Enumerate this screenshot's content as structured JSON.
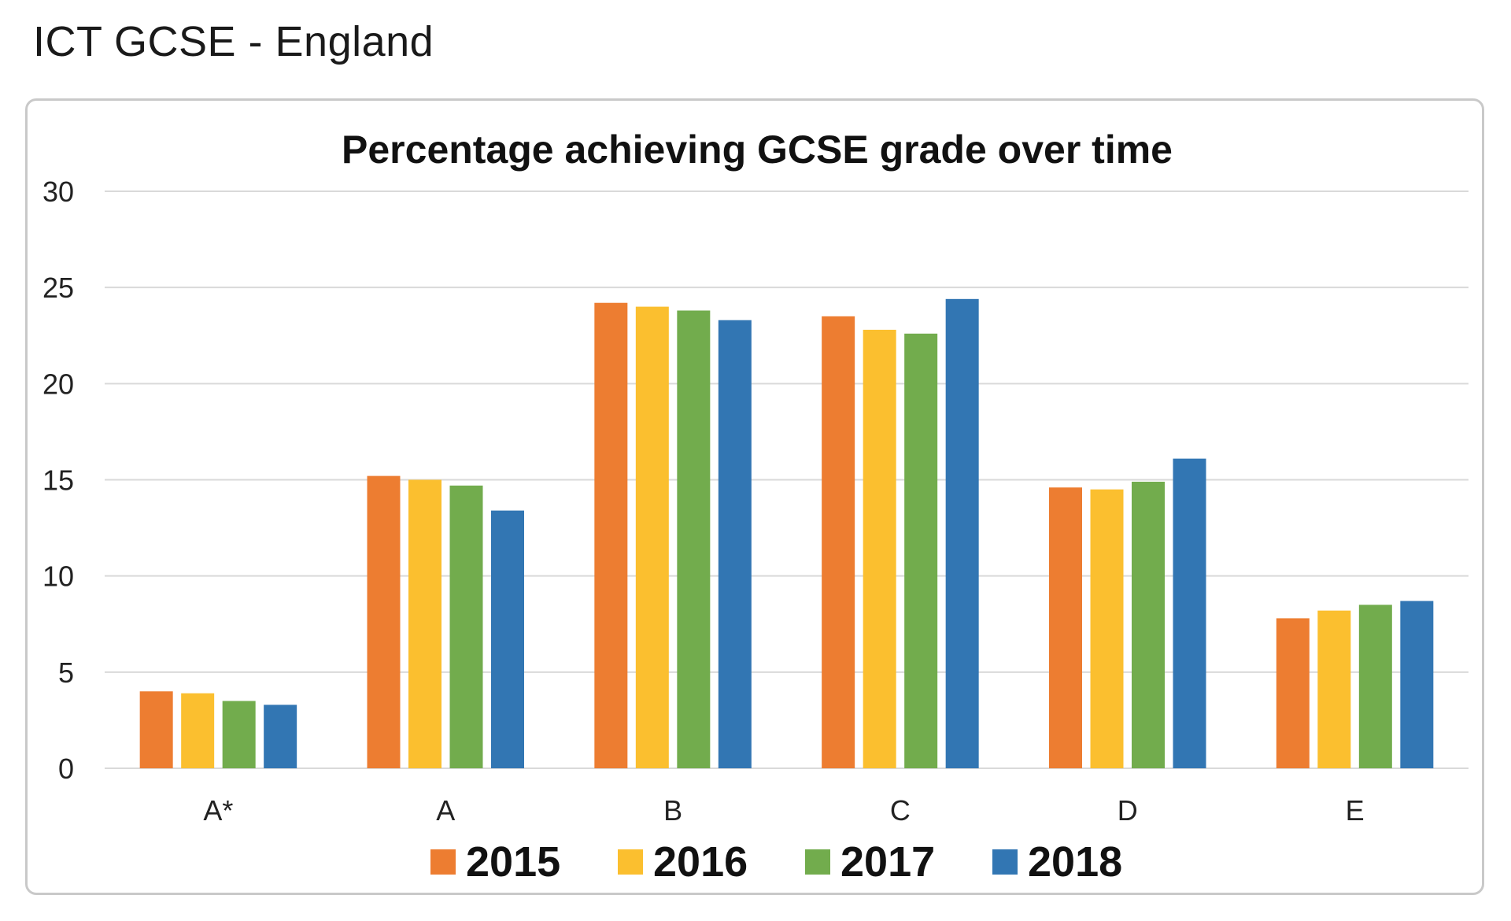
{
  "page_title": "ICT GCSE - England",
  "chart_data": {
    "type": "bar",
    "title": "Percentage achieving GCSE grade over time",
    "xlabel": "",
    "ylabel": "",
    "categories": [
      "A*",
      "A",
      "B",
      "C",
      "D",
      "E"
    ],
    "ylim": [
      0,
      30
    ],
    "yticks": [
      0,
      5,
      10,
      15,
      20,
      25,
      30
    ],
    "grid": true,
    "legend_position": "bottom",
    "series": [
      {
        "name": "2015",
        "color": "#ED7D31",
        "values": [
          4.0,
          15.2,
          24.2,
          23.5,
          14.6,
          7.8
        ]
      },
      {
        "name": "2016",
        "color": "#FBBF2F",
        "values": [
          3.9,
          15.0,
          24.0,
          22.8,
          14.5,
          8.2
        ]
      },
      {
        "name": "2017",
        "color": "#72AC4D",
        "values": [
          3.5,
          14.7,
          23.8,
          22.6,
          14.9,
          8.5
        ]
      },
      {
        "name": "2018",
        "color": "#3276B3",
        "values": [
          3.3,
          13.4,
          23.3,
          24.4,
          16.1,
          8.7
        ]
      }
    ]
  }
}
